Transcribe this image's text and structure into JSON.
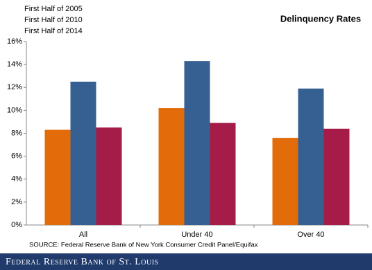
{
  "chart_data": {
    "type": "bar",
    "title": "Delinquency Rates",
    "categories": [
      "All",
      "Under 40",
      "Over 40"
    ],
    "series": [
      {
        "name": "First Half of 2005",
        "color": "#e36c0a",
        "values": [
          8.3,
          10.2,
          7.6
        ]
      },
      {
        "name": "First Half of 2010",
        "color": "#376092",
        "values": [
          12.5,
          14.3,
          11.9
        ]
      },
      {
        "name": "First Half of 2014",
        "color": "#a51c48",
        "values": [
          8.5,
          8.9,
          8.4
        ]
      }
    ],
    "ylim": [
      0,
      16
    ],
    "yticks": [
      {
        "value": 0,
        "label": "0%"
      },
      {
        "value": 2,
        "label": "2%"
      },
      {
        "value": 4,
        "label": "4%"
      },
      {
        "value": 6,
        "label": "6%"
      },
      {
        "value": 8,
        "label": "8%"
      },
      {
        "value": 10,
        "label": "10%"
      },
      {
        "value": 12,
        "label": "12%"
      },
      {
        "value": 14,
        "label": "14%"
      },
      {
        "value": 16,
        "label": "16%"
      }
    ],
    "grid": false,
    "source": "SOURCE: Federal Reserve Bank of New York Consumer Credit Panel/Equifax"
  },
  "footer": "Federal Reserve Bank of St. Louis"
}
